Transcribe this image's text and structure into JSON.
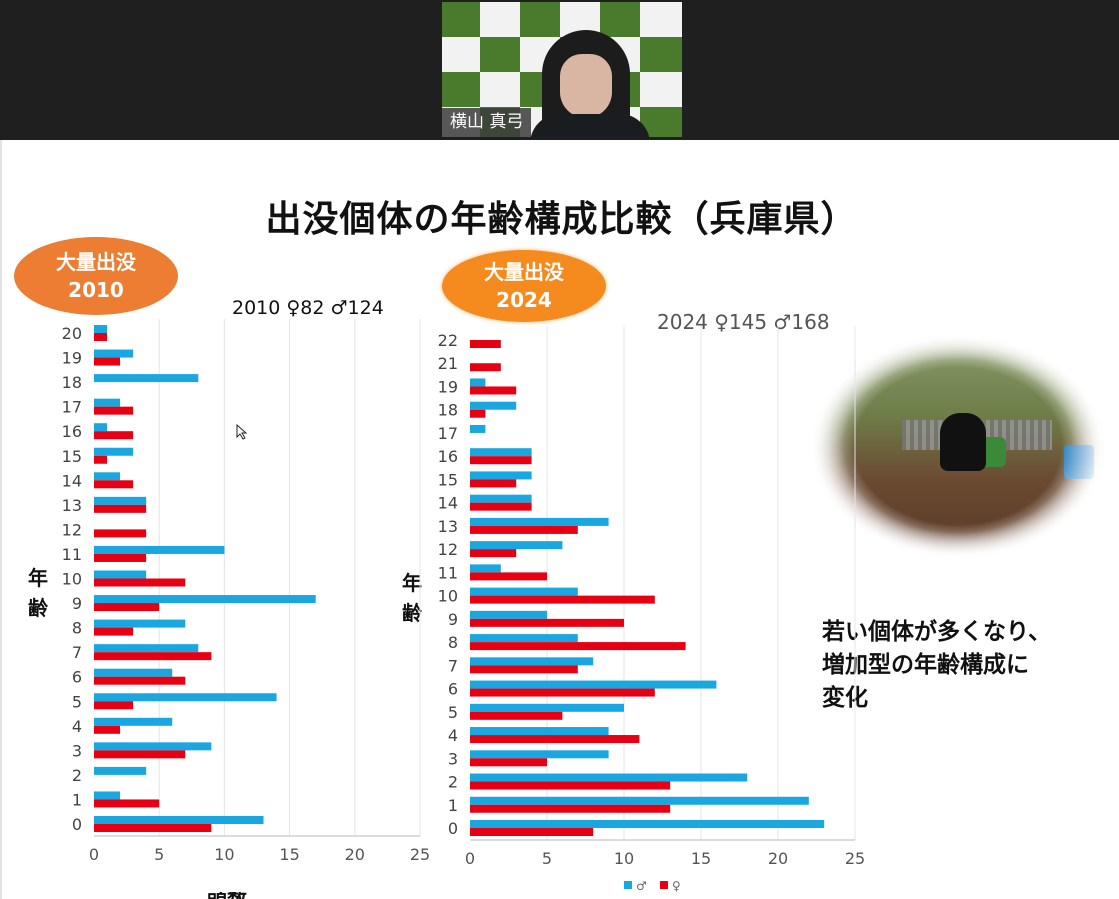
{
  "video": {
    "participant_name": "横山 真弓"
  },
  "slide": {
    "title": "出没個体の年齢構成比較（兵庫県）",
    "badge_2010": {
      "line1": "大量出没",
      "line2": "2010"
    },
    "badge_2024": {
      "line1": "大量出没",
      "line2": "2024"
    },
    "stat_2010": "2010 ♀82 ♂124",
    "stat_2024": "2024 ♀145 ♂168",
    "y_label_left": "年齢",
    "y_label_right": "年齢",
    "x_label_cut": "頭数",
    "note_lines": [
      "若い個体が多くなり、",
      "増加型の年齢構成に",
      "変化"
    ],
    "legend": {
      "male": "♂",
      "female": "♀"
    }
  },
  "colors": {
    "male": "#1aa7e0",
    "female": "#e60012",
    "badge1": "#ec7d32",
    "badge2": "#f58a1f"
  },
  "chart_data": [
    {
      "type": "bar",
      "orientation": "horizontal",
      "title": "2010 ♀82 ♂124",
      "xlabel": "頭数",
      "ylabel": "年齢",
      "xlim": [
        0,
        25
      ],
      "xticks": [
        0,
        5,
        10,
        15,
        20,
        25
      ],
      "categories": [
        "20",
        "19",
        "18",
        "17",
        "16",
        "15",
        "14",
        "13",
        "12",
        "11",
        "10",
        "9",
        "8",
        "7",
        "6",
        "5",
        "4",
        "3",
        "2",
        "1",
        "0"
      ],
      "series": [
        {
          "name": "♂",
          "values": [
            1,
            3,
            8,
            2,
            1,
            3,
            2,
            4,
            0,
            10,
            4,
            17,
            7,
            8,
            6,
            14,
            6,
            9,
            4,
            2,
            13
          ]
        },
        {
          "name": "♀",
          "values": [
            1,
            2,
            0,
            3,
            3,
            1,
            3,
            4,
            4,
            4,
            7,
            5,
            3,
            9,
            7,
            3,
            2,
            7,
            0,
            5,
            9
          ]
        }
      ]
    },
    {
      "type": "bar",
      "orientation": "horizontal",
      "title": "2024 ♀145 ♂168",
      "ylabel": "年齢",
      "xlim": [
        0,
        25
      ],
      "xticks": [
        0,
        5,
        10,
        15,
        20,
        25
      ],
      "legend": "bottom",
      "categories": [
        "22",
        "21",
        "19",
        "18",
        "17",
        "16",
        "15",
        "14",
        "13",
        "12",
        "11",
        "10",
        "9",
        "8",
        "7",
        "6",
        "5",
        "4",
        "3",
        "2",
        "1",
        "0"
      ],
      "series": [
        {
          "name": "♂",
          "values": [
            0,
            0,
            1,
            3,
            1,
            4,
            4,
            4,
            9,
            6,
            2,
            7,
            5,
            7,
            8,
            16,
            10,
            9,
            9,
            18,
            22,
            23
          ]
        },
        {
          "name": "♀",
          "values": [
            2,
            2,
            3,
            1,
            0,
            4,
            3,
            4,
            7,
            3,
            5,
            12,
            10,
            14,
            7,
            12,
            6,
            11,
            5,
            13,
            13,
            8
          ]
        }
      ]
    }
  ]
}
